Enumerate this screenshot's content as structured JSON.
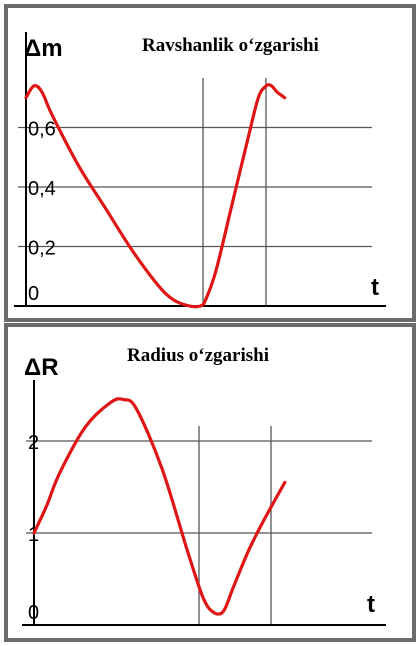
{
  "chart_data": [
    {
      "type": "line",
      "title": "Ravshanlik o‘zgarishi",
      "ylabel": "Δm",
      "xlabel": "t",
      "yticks": [
        "0",
        "0,2",
        "0,4",
        "0,6"
      ],
      "ylim": [
        0,
        0.8
      ],
      "grid": true,
      "series": [
        {
          "color": "#e01616",
          "x": [
            0,
            0.03,
            0.06,
            0.1,
            0.2,
            0.3,
            0.4,
            0.5,
            0.56,
            0.62,
            0.66,
            0.68,
            0.72,
            0.78,
            0.84,
            0.88,
            0.91,
            0.93,
            0.95,
            0.98
          ],
          "y": [
            0.7,
            0.74,
            0.72,
            0.64,
            0.47,
            0.33,
            0.19,
            0.07,
            0.02,
            0.0,
            0.0,
            0.02,
            0.12,
            0.34,
            0.56,
            0.7,
            0.74,
            0.74,
            0.72,
            0.7
          ]
        }
      ]
    },
    {
      "type": "line",
      "title": "Radius o‘zgarishi",
      "ylabel": "ΔR",
      "xlabel": "t",
      "yticks": [
        "0",
        "1",
        "2"
      ],
      "ylim": [
        0,
        2.5
      ],
      "grid": true,
      "series": [
        {
          "color": "#e01616",
          "x": [
            0,
            0.05,
            0.1,
            0.2,
            0.3,
            0.35,
            0.4,
            0.5,
            0.6,
            0.66,
            0.7,
            0.74,
            0.78,
            0.84,
            0.9,
            0.98
          ],
          "y": [
            1.0,
            1.3,
            1.65,
            2.15,
            2.42,
            2.45,
            2.35,
            1.7,
            0.8,
            0.3,
            0.14,
            0.15,
            0.42,
            0.82,
            1.15,
            1.55
          ]
        }
      ]
    }
  ]
}
